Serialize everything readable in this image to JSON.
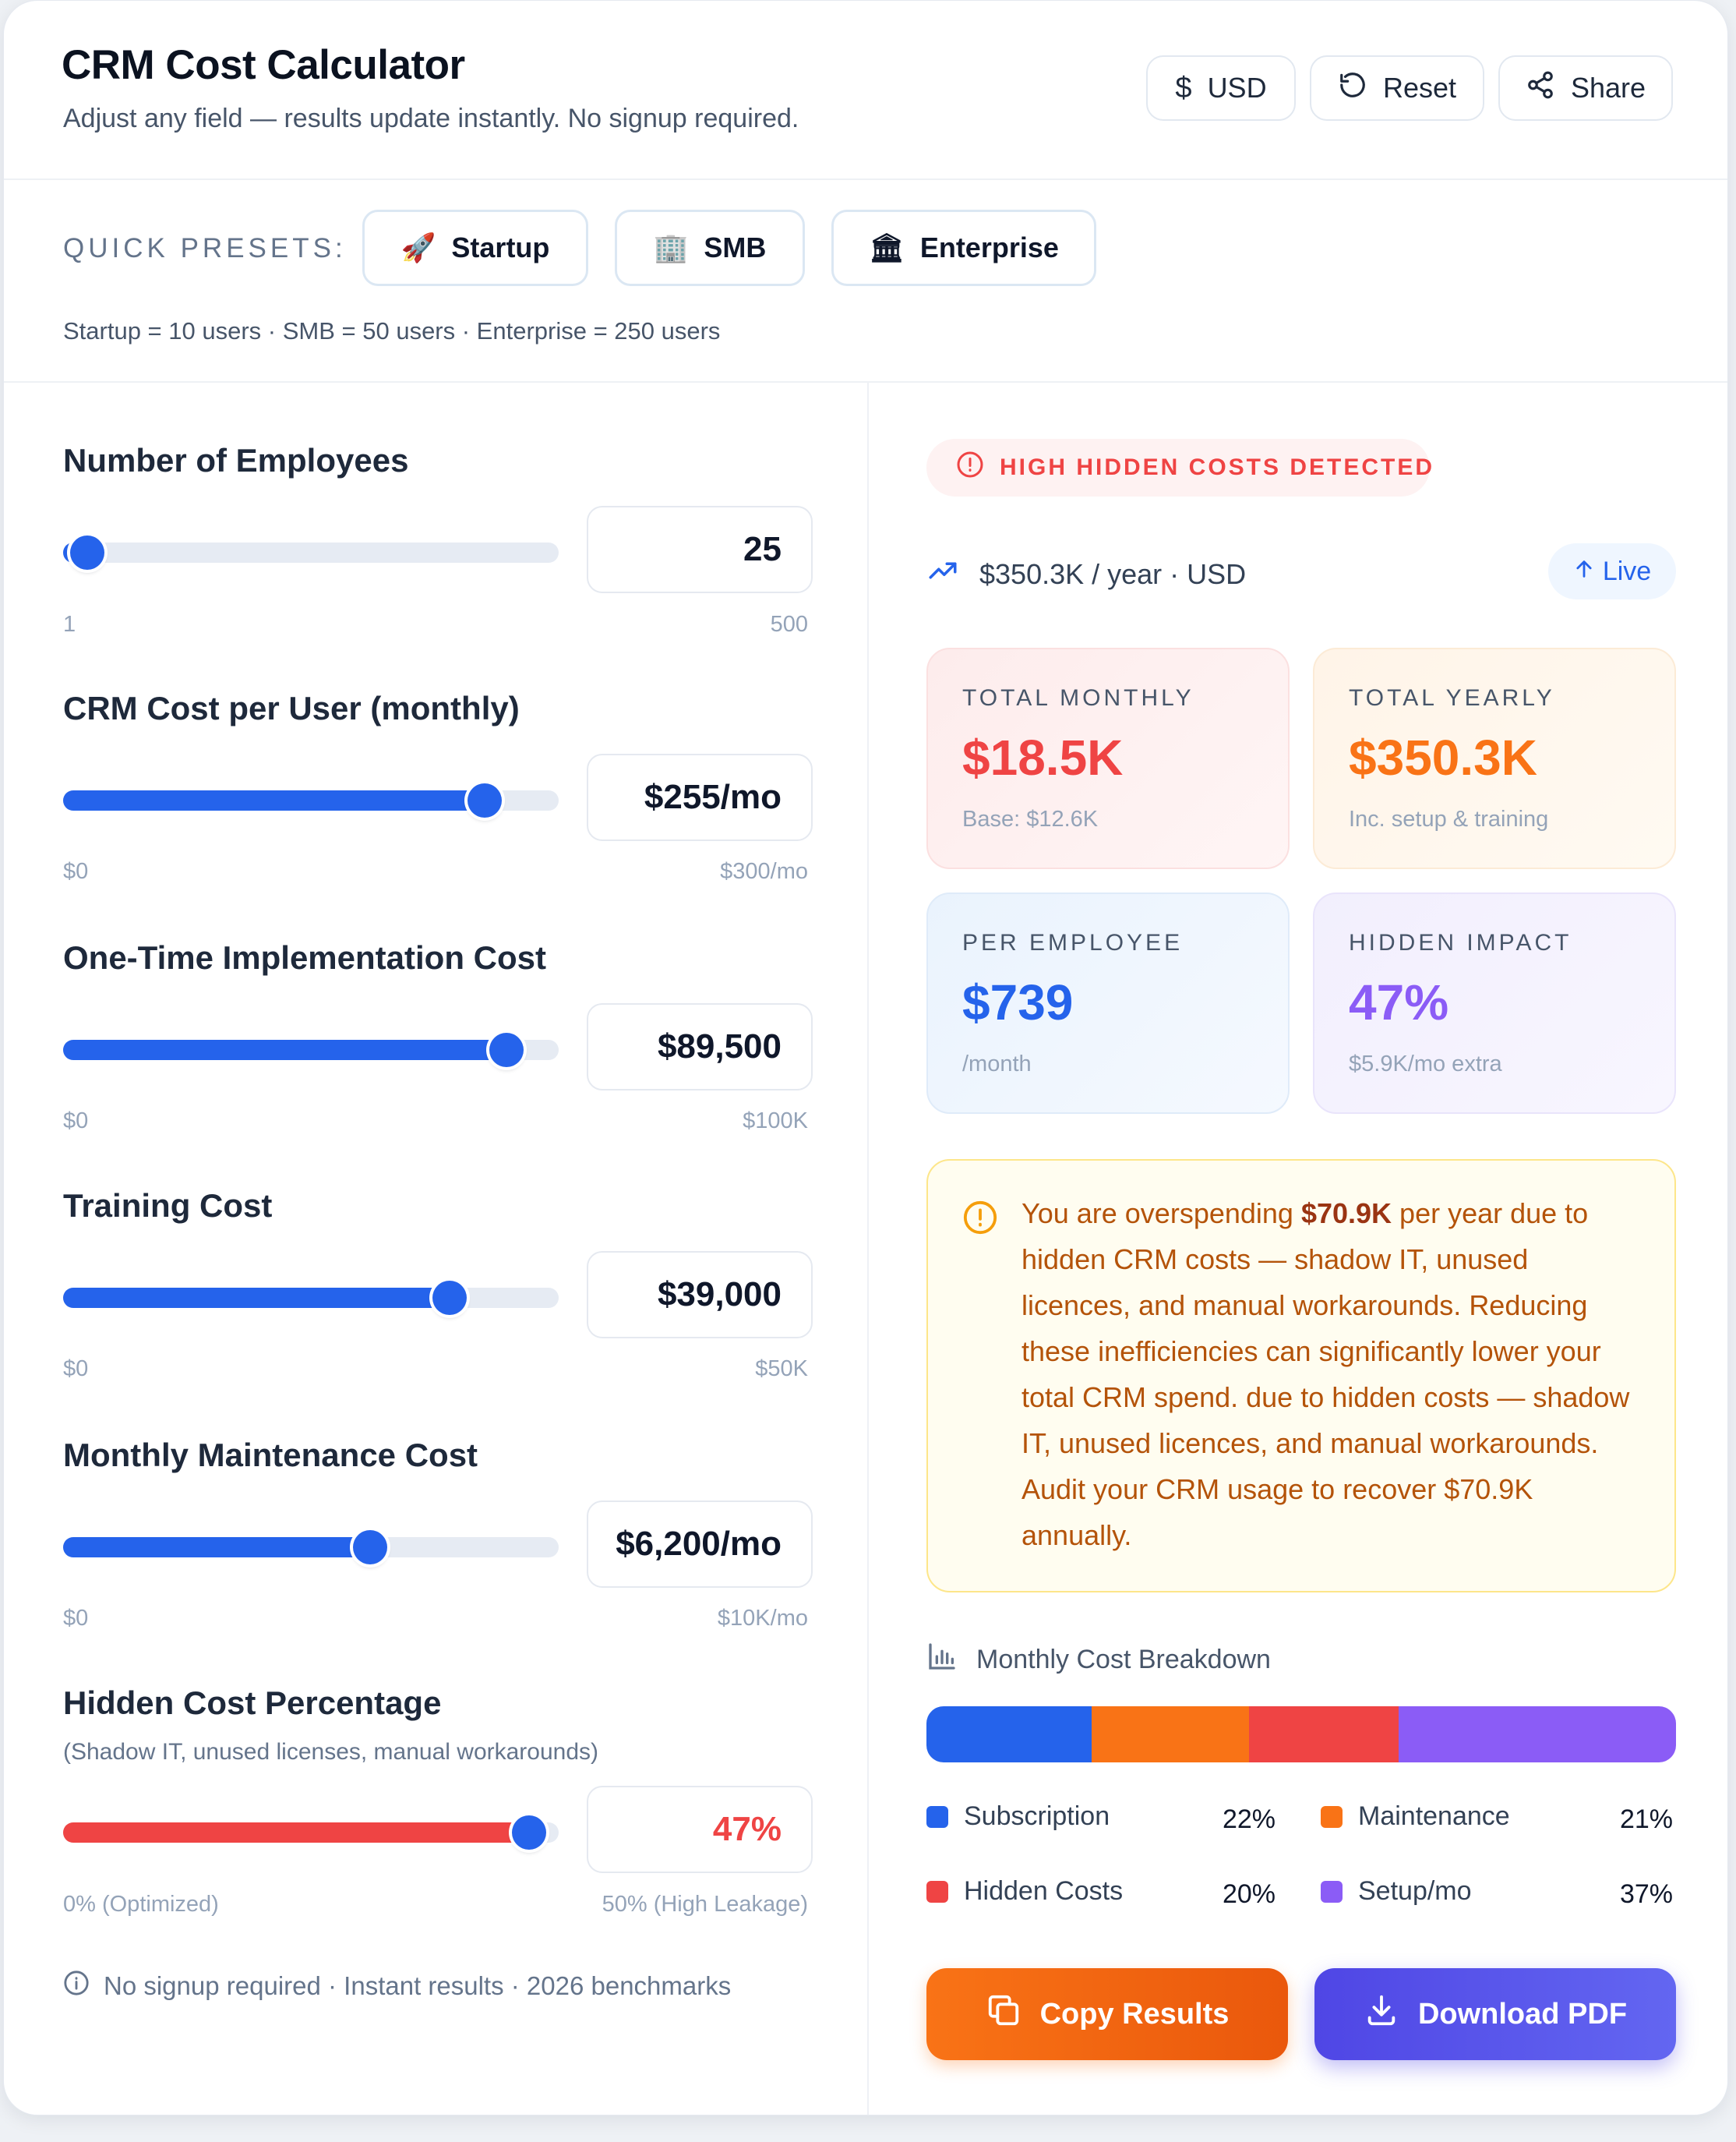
{
  "header": {
    "title": "CRM Cost Calculator",
    "subtitle": "Adjust any field — results update instantly. No signup required.",
    "currency_label": "USD",
    "reset_label": "Reset",
    "share_label": "Share"
  },
  "presets": {
    "label": "QUICK PRESETS:",
    "items": [
      {
        "icon": "🚀",
        "label": "Startup"
      },
      {
        "icon": "🏢",
        "label": "SMB"
      },
      {
        "icon": "🏛",
        "label": "Enterprise"
      }
    ],
    "note": "Startup = 10 users · SMB = 50 users · Enterprise = 250 users"
  },
  "fields": [
    {
      "label": "Number of Employees",
      "value": "25",
      "min_label": "1",
      "max_label": "500",
      "level": 0.048
    },
    {
      "label": "CRM Cost per User (monthly)",
      "value": "$255/mo",
      "min_label": "$0",
      "max_label": "$300/mo",
      "level": 0.85
    },
    {
      "label": "One-Time Implementation Cost",
      "value": "$89,500",
      "min_label": "$0",
      "max_label": "$100K",
      "level": 0.895
    },
    {
      "label": "Training Cost",
      "value": "$39,000",
      "min_label": "$0",
      "max_label": "$50K",
      "level": 0.78
    },
    {
      "label": "Monthly Maintenance Cost",
      "value": "$6,200/mo",
      "min_label": "$0",
      "max_label": "$10K/mo",
      "level": 0.62
    },
    {
      "label": "Hidden Cost Percentage",
      "sublabel": "(Shadow IT, unused licenses, manual workarounds)",
      "value": "47%",
      "min_label": "0% (Optimized)",
      "max_label": "50% (High Leakage)",
      "level": 0.94
    }
  ],
  "footnote": "No signup required · Instant results · 2026 benchmarks",
  "results": {
    "alert": "HIGH HIDDEN COSTS DETECTED",
    "rate": "$350.3K / year · USD",
    "live_label": "Live",
    "kpis": [
      {
        "label": "TOTAL MONTHLY",
        "value": "$18.5K",
        "sub": "Base: $12.6K",
        "color": "#ef4444"
      },
      {
        "label": "TOTAL YEARLY",
        "value": "$350.3K",
        "sub": "Inc. setup & training",
        "color": "#f97316"
      },
      {
        "label": "PER EMPLOYEE",
        "value": "$739",
        "sub": "/month",
        "color": "#2563eb"
      },
      {
        "label": "HIDDEN IMPACT",
        "value": "47%",
        "sub": "$5.9K/mo extra",
        "color": "#8b5cf6"
      }
    ],
    "warning": {
      "pre": "You are overspending ",
      "amount": "$70.9K",
      "post": " per year due to hidden CRM costs — shadow IT, unused licences, and manual workarounds. Reducing these inefficiencies can significantly lower your total CRM spend. due to hidden costs — shadow IT, unused licences, and manual workarounds. Audit your CRM usage to recover $70.9K annually."
    },
    "breakdown": {
      "title": "Monthly Cost Breakdown",
      "segments": [
        {
          "label": "Subscription",
          "pct": "22%",
          "share": 0.22,
          "color": "#2563eb"
        },
        {
          "label": "Maintenance",
          "pct": "21%",
          "share": 0.21,
          "color": "#f97316"
        },
        {
          "label": "Hidden Costs",
          "pct": "20%",
          "share": 0.2,
          "color": "#ef4444"
        },
        {
          "label": "Setup/mo",
          "pct": "37%",
          "share": 0.37,
          "color": "#8b5cf6"
        }
      ]
    },
    "copy_label": "Copy Results",
    "download_label": "Download PDF"
  }
}
